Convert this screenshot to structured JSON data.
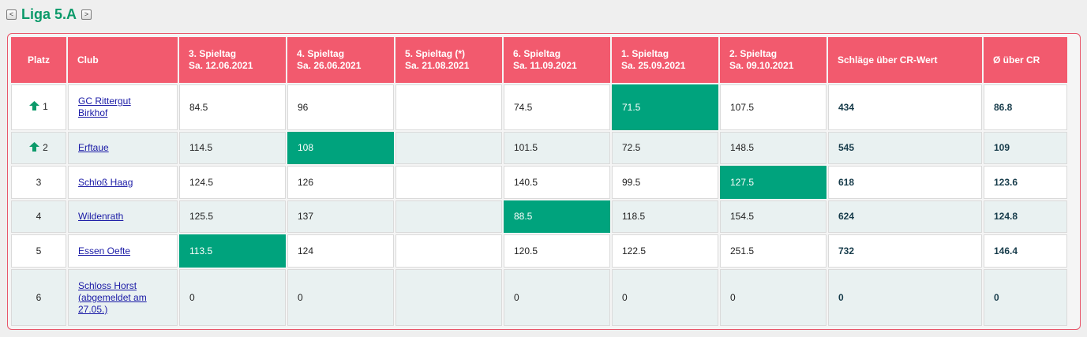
{
  "league": {
    "title": "Liga 5.A",
    "prev_label": "<",
    "next_label": ">"
  },
  "columns": [
    "Platz",
    "Club",
    "3. Spieltag",
    "4. Spieltag",
    "5. Spieltag (*)",
    "6. Spieltag",
    "1. Spieltag",
    "2. Spieltag",
    "Schläge über CR-Wert",
    "Ø über CR"
  ],
  "column_dates": [
    "",
    "",
    "Sa. 12.06.2021",
    "Sa. 26.06.2021",
    "Sa. 21.08.2021",
    "Sa. 11.09.2021",
    "Sa. 25.09.2021",
    "Sa. 09.10.2021",
    "",
    ""
  ],
  "colors": {
    "header": "#f25a6e",
    "highlight": "#00a37d",
    "arrow": "#0c9a6a",
    "title": "#0c9a6a"
  },
  "rows": [
    {
      "rank": "1",
      "trend": "up",
      "club_lines": [
        "GC Rittergut",
        "Birkhof"
      ],
      "scores": [
        "84.5",
        "96",
        "",
        "74.5",
        "71.5",
        "107.5"
      ],
      "best_index": 4,
      "total": "434",
      "avg": "86.8"
    },
    {
      "rank": "2",
      "trend": "up",
      "club_lines": [
        "Erftaue"
      ],
      "scores": [
        "114.5",
        "108",
        "",
        "101.5",
        "72.5",
        "148.5"
      ],
      "best_index": 1,
      "total": "545",
      "avg": "109"
    },
    {
      "rank": "3",
      "trend": "",
      "club_lines": [
        "Schloß Haag"
      ],
      "scores": [
        "124.5",
        "126",
        "",
        "140.5",
        "99.5",
        "127.5"
      ],
      "best_index": 5,
      "total": "618",
      "avg": "123.6"
    },
    {
      "rank": "4",
      "trend": "",
      "club_lines": [
        "Wildenrath"
      ],
      "scores": [
        "125.5",
        "137",
        "",
        "88.5",
        "118.5",
        "154.5"
      ],
      "best_index": 3,
      "total": "624",
      "avg": "124.8"
    },
    {
      "rank": "5",
      "trend": "",
      "club_lines": [
        "Essen Oefte"
      ],
      "scores": [
        "113.5",
        "124",
        "",
        "120.5",
        "122.5",
        "251.5"
      ],
      "best_index": 0,
      "total": "732",
      "avg": "146.4"
    },
    {
      "rank": "6",
      "trend": "",
      "club_lines": [
        "Schloss Horst",
        "(abgemeldet am",
        "27.05.)"
      ],
      "scores": [
        "0",
        "0",
        "",
        "0",
        "0",
        "0"
      ],
      "best_index": -1,
      "total": "0",
      "avg": "0"
    }
  ]
}
